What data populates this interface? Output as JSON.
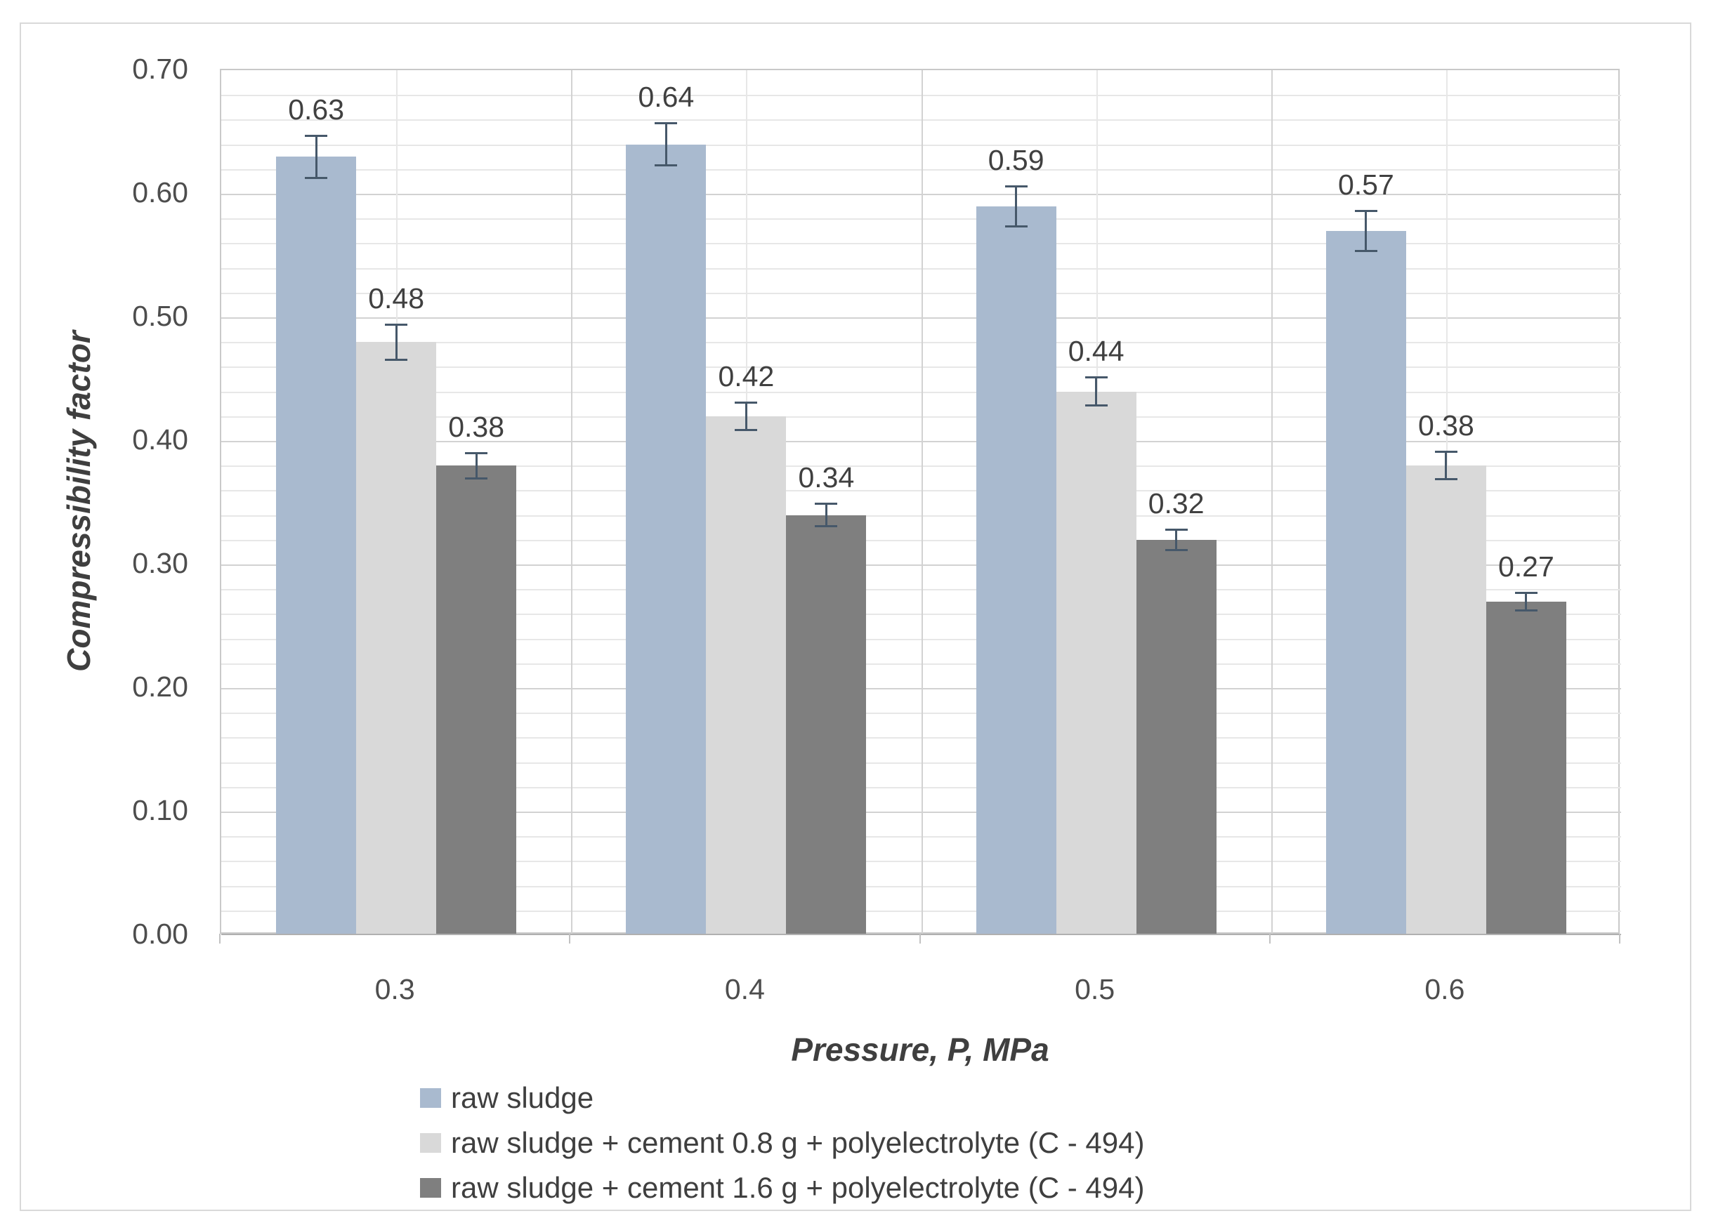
{
  "chart_data": {
    "type": "bar",
    "title": "",
    "xlabel": "Pressure, P, MPa",
    "ylabel": "Compressibility factor",
    "categories": [
      "0.3",
      "0.4",
      "0.5",
      "0.6"
    ],
    "series": [
      {
        "name": "raw sludge",
        "color": "#a9bacf",
        "values": [
          0.63,
          0.64,
          0.59,
          0.57
        ],
        "labels": [
          "0.63",
          "0.64",
          "0.59",
          "0.57"
        ],
        "errors": [
          0.018,
          0.018,
          0.017,
          0.017
        ]
      },
      {
        "name": "raw sludge + cement 0.8 g + polyelectrolyte (C - 494)",
        "color": "#d9d9d9",
        "values": [
          0.48,
          0.42,
          0.44,
          0.38
        ],
        "labels": [
          "0.48",
          "0.42",
          "0.44",
          "0.38"
        ],
        "errors": [
          0.015,
          0.012,
          0.012,
          0.012
        ]
      },
      {
        "name": "raw sludge + cement 1.6 g + polyelectrolyte (C - 494)",
        "color": "#7f7f7f",
        "values": [
          0.38,
          0.34,
          0.32,
          0.27
        ],
        "labels": [
          "0.38",
          "0.34",
          "0.32",
          "0.27"
        ],
        "errors": [
          0.011,
          0.01,
          0.009,
          0.008
        ]
      }
    ],
    "ylim": [
      0,
      0.7
    ],
    "y_major_step": 0.1,
    "y_minor_step": 0.02,
    "y_tick_labels": [
      "0.00",
      "0.10",
      "0.20",
      "0.30",
      "0.40",
      "0.50",
      "0.60",
      "0.70"
    ],
    "grid": true,
    "legend_position": "bottom",
    "colors": {
      "error_bar": "#46586a",
      "grid_minor": "#e7e7e7",
      "grid_major": "#d2d2d2",
      "plot_border": "#c9c9c9",
      "axis_line": "#b0b0b0",
      "frame_border": "#d9d9d9",
      "text": "#404040"
    }
  }
}
